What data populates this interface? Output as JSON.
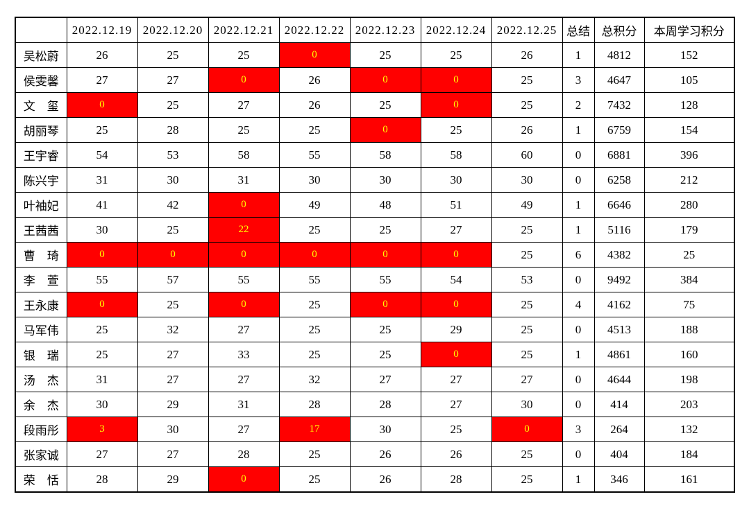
{
  "table": {
    "corner": "",
    "date_headers": [
      "2022.12.19",
      "2022.12.20",
      "2022.12.21",
      "2022.12.22",
      "2022.12.23",
      "2022.12.24",
      "2022.12.25"
    ],
    "summary_headers": [
      "总结",
      "总积分",
      "本周学习积分"
    ],
    "rows": [
      {
        "name": "吴松蔚",
        "days": [
          {
            "v": "26",
            "hl": false
          },
          {
            "v": "25",
            "hl": false
          },
          {
            "v": "25",
            "hl": false
          },
          {
            "v": "0",
            "hl": true
          },
          {
            "v": "25",
            "hl": false
          },
          {
            "v": "25",
            "hl": false
          },
          {
            "v": "26",
            "hl": false
          }
        ],
        "summary": "1",
        "total": "4812",
        "week": "152"
      },
      {
        "name": "侯雯馨",
        "days": [
          {
            "v": "27",
            "hl": false
          },
          {
            "v": "27",
            "hl": false
          },
          {
            "v": "0",
            "hl": true
          },
          {
            "v": "26",
            "hl": false
          },
          {
            "v": "0",
            "hl": true
          },
          {
            "v": "0",
            "hl": true
          },
          {
            "v": "25",
            "hl": false
          }
        ],
        "summary": "3",
        "total": "4647",
        "week": "105"
      },
      {
        "name": "文　玺",
        "days": [
          {
            "v": "0",
            "hl": true
          },
          {
            "v": "25",
            "hl": false
          },
          {
            "v": "27",
            "hl": false
          },
          {
            "v": "26",
            "hl": false
          },
          {
            "v": "25",
            "hl": false
          },
          {
            "v": "0",
            "hl": true
          },
          {
            "v": "25",
            "hl": false
          }
        ],
        "summary": "2",
        "total": "7432",
        "week": "128"
      },
      {
        "name": "胡丽琴",
        "days": [
          {
            "v": "25",
            "hl": false
          },
          {
            "v": "28",
            "hl": false
          },
          {
            "v": "25",
            "hl": false
          },
          {
            "v": "25",
            "hl": false
          },
          {
            "v": "0",
            "hl": true
          },
          {
            "v": "25",
            "hl": false
          },
          {
            "v": "26",
            "hl": false
          }
        ],
        "summary": "1",
        "total": "6759",
        "week": "154"
      },
      {
        "name": "王宇睿",
        "days": [
          {
            "v": "54",
            "hl": false
          },
          {
            "v": "53",
            "hl": false
          },
          {
            "v": "58",
            "hl": false
          },
          {
            "v": "55",
            "hl": false
          },
          {
            "v": "58",
            "hl": false
          },
          {
            "v": "58",
            "hl": false
          },
          {
            "v": "60",
            "hl": false
          }
        ],
        "summary": "0",
        "total": "6881",
        "week": "396"
      },
      {
        "name": "陈兴宇",
        "days": [
          {
            "v": "31",
            "hl": false
          },
          {
            "v": "30",
            "hl": false
          },
          {
            "v": "31",
            "hl": false
          },
          {
            "v": "30",
            "hl": false
          },
          {
            "v": "30",
            "hl": false
          },
          {
            "v": "30",
            "hl": false
          },
          {
            "v": "30",
            "hl": false
          }
        ],
        "summary": "0",
        "total": "6258",
        "week": "212"
      },
      {
        "name": "叶袖妃",
        "days": [
          {
            "v": "41",
            "hl": false
          },
          {
            "v": "42",
            "hl": false
          },
          {
            "v": "0",
            "hl": true
          },
          {
            "v": "49",
            "hl": false
          },
          {
            "v": "48",
            "hl": false
          },
          {
            "v": "51",
            "hl": false
          },
          {
            "v": "49",
            "hl": false
          }
        ],
        "summary": "1",
        "total": "6646",
        "week": "280"
      },
      {
        "name": "王茜茜",
        "days": [
          {
            "v": "30",
            "hl": false
          },
          {
            "v": "25",
            "hl": false
          },
          {
            "v": "22",
            "hl": true
          },
          {
            "v": "25",
            "hl": false
          },
          {
            "v": "25",
            "hl": false
          },
          {
            "v": "27",
            "hl": false
          },
          {
            "v": "25",
            "hl": false
          }
        ],
        "summary": "1",
        "total": "5116",
        "week": "179"
      },
      {
        "name": "曹　琦",
        "days": [
          {
            "v": "0",
            "hl": true
          },
          {
            "v": "0",
            "hl": true
          },
          {
            "v": "0",
            "hl": true
          },
          {
            "v": "0",
            "hl": true
          },
          {
            "v": "0",
            "hl": true
          },
          {
            "v": "0",
            "hl": true
          },
          {
            "v": "25",
            "hl": false
          }
        ],
        "summary": "6",
        "total": "4382",
        "week": "25"
      },
      {
        "name": "李　萱",
        "days": [
          {
            "v": "55",
            "hl": false
          },
          {
            "v": "57",
            "hl": false
          },
          {
            "v": "55",
            "hl": false
          },
          {
            "v": "55",
            "hl": false
          },
          {
            "v": "55",
            "hl": false
          },
          {
            "v": "54",
            "hl": false
          },
          {
            "v": "53",
            "hl": false
          }
        ],
        "summary": "0",
        "total": "9492",
        "week": "384"
      },
      {
        "name": "王永康",
        "days": [
          {
            "v": "0",
            "hl": true
          },
          {
            "v": "25",
            "hl": false
          },
          {
            "v": "0",
            "hl": true
          },
          {
            "v": "25",
            "hl": false
          },
          {
            "v": "0",
            "hl": true
          },
          {
            "v": "0",
            "hl": true
          },
          {
            "v": "25",
            "hl": false
          }
        ],
        "summary": "4",
        "total": "4162",
        "week": "75"
      },
      {
        "name": "马军伟",
        "days": [
          {
            "v": "25",
            "hl": false
          },
          {
            "v": "32",
            "hl": false
          },
          {
            "v": "27",
            "hl": false
          },
          {
            "v": "25",
            "hl": false
          },
          {
            "v": "25",
            "hl": false
          },
          {
            "v": "29",
            "hl": false
          },
          {
            "v": "25",
            "hl": false
          }
        ],
        "summary": "0",
        "total": "4513",
        "week": "188"
      },
      {
        "name": "银　瑞",
        "days": [
          {
            "v": "25",
            "hl": false
          },
          {
            "v": "27",
            "hl": false
          },
          {
            "v": "33",
            "hl": false
          },
          {
            "v": "25",
            "hl": false
          },
          {
            "v": "25",
            "hl": false
          },
          {
            "v": "0",
            "hl": true
          },
          {
            "v": "25",
            "hl": false
          }
        ],
        "summary": "1",
        "total": "4861",
        "week": "160"
      },
      {
        "name": "汤　杰",
        "days": [
          {
            "v": "31",
            "hl": false
          },
          {
            "v": "27",
            "hl": false
          },
          {
            "v": "27",
            "hl": false
          },
          {
            "v": "32",
            "hl": false
          },
          {
            "v": "27",
            "hl": false
          },
          {
            "v": "27",
            "hl": false
          },
          {
            "v": "27",
            "hl": false
          }
        ],
        "summary": "0",
        "total": "4644",
        "week": "198"
      },
      {
        "name": "余　杰",
        "days": [
          {
            "v": "30",
            "hl": false
          },
          {
            "v": "29",
            "hl": false
          },
          {
            "v": "31",
            "hl": false
          },
          {
            "v": "28",
            "hl": false
          },
          {
            "v": "28",
            "hl": false
          },
          {
            "v": "27",
            "hl": false
          },
          {
            "v": "30",
            "hl": false
          }
        ],
        "summary": "0",
        "total": "414",
        "week": "203"
      },
      {
        "name": "段雨彤",
        "days": [
          {
            "v": "3",
            "hl": true
          },
          {
            "v": "30",
            "hl": false
          },
          {
            "v": "27",
            "hl": false
          },
          {
            "v": "17",
            "hl": true
          },
          {
            "v": "30",
            "hl": false
          },
          {
            "v": "25",
            "hl": false
          },
          {
            "v": "0",
            "hl": true
          }
        ],
        "summary": "3",
        "total": "264",
        "week": "132"
      },
      {
        "name": "张家诚",
        "days": [
          {
            "v": "27",
            "hl": false
          },
          {
            "v": "27",
            "hl": false
          },
          {
            "v": "28",
            "hl": false
          },
          {
            "v": "25",
            "hl": false
          },
          {
            "v": "26",
            "hl": false
          },
          {
            "v": "26",
            "hl": false
          },
          {
            "v": "25",
            "hl": false
          }
        ],
        "summary": "0",
        "total": "404",
        "week": "184"
      },
      {
        "name": "荣　恬",
        "days": [
          {
            "v": "28",
            "hl": false
          },
          {
            "v": "29",
            "hl": false
          },
          {
            "v": "0",
            "hl": true
          },
          {
            "v": "25",
            "hl": false
          },
          {
            "v": "26",
            "hl": false
          },
          {
            "v": "28",
            "hl": false
          },
          {
            "v": "25",
            "hl": false
          }
        ],
        "summary": "1",
        "total": "346",
        "week": "161"
      }
    ],
    "colors": {
      "highlight_bg": "#ff0000",
      "highlight_text": "#ffff00",
      "accent_text": "#fe0000",
      "grid": "#000000"
    }
  }
}
